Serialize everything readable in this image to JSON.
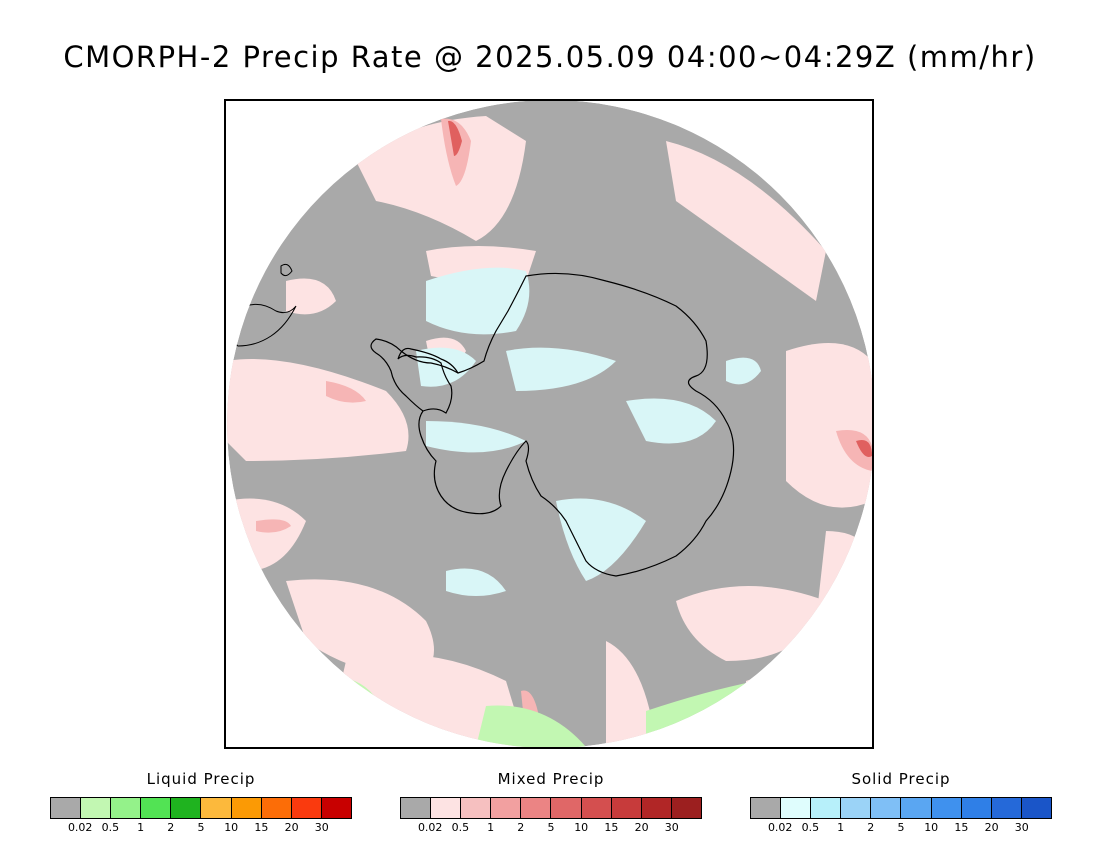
{
  "title": "CMORPH-2 Precip Rate @ 2025.05.09 04:00~04:29Z (mm/hr)",
  "map": {
    "projection": "south-polar-stereographic",
    "colors": {
      "no_precip": "#a9a9a9",
      "mixed_light": "#fde3e3",
      "mixed_med": "#f6b5b5",
      "mixed_heavy": "#e0605f",
      "solid_light": "#d9f6f7",
      "liquid_light": "#c2f7b2",
      "coastline": "#000000"
    }
  },
  "legends": [
    {
      "title": "Liquid Precip",
      "colors": [
        "#a9a9a9",
        "#c2f7b2",
        "#94f28a",
        "#52e354",
        "#1fb31f",
        "#fcb93c",
        "#fb9a05",
        "#fc6d07",
        "#fa3a0e",
        "#c80000"
      ],
      "ticks": [
        "0.02",
        "0.5",
        "1",
        "2",
        "5",
        "10",
        "15",
        "20",
        "30"
      ]
    },
    {
      "title": "Mixed Precip",
      "colors": [
        "#a9a9a9",
        "#fde3e3",
        "#f6c0c0",
        "#f2a0a0",
        "#eb8484",
        "#e06767",
        "#d44f4f",
        "#c73b3b",
        "#b12626",
        "#9c1f1f"
      ],
      "ticks": [
        "0.02",
        "0.5",
        "1",
        "2",
        "5",
        "10",
        "15",
        "20",
        "30"
      ]
    },
    {
      "title": "Solid Precip",
      "colors": [
        "#a9a9a9",
        "#dffdfd",
        "#b7f0fa",
        "#9bd3f7",
        "#7fbff6",
        "#5aa6f2",
        "#3f91ee",
        "#2f7fe7",
        "#2569d9",
        "#1a55c8"
      ],
      "ticks": [
        "0.02",
        "0.5",
        "1",
        "2",
        "5",
        "10",
        "15",
        "20",
        "30"
      ]
    }
  ]
}
